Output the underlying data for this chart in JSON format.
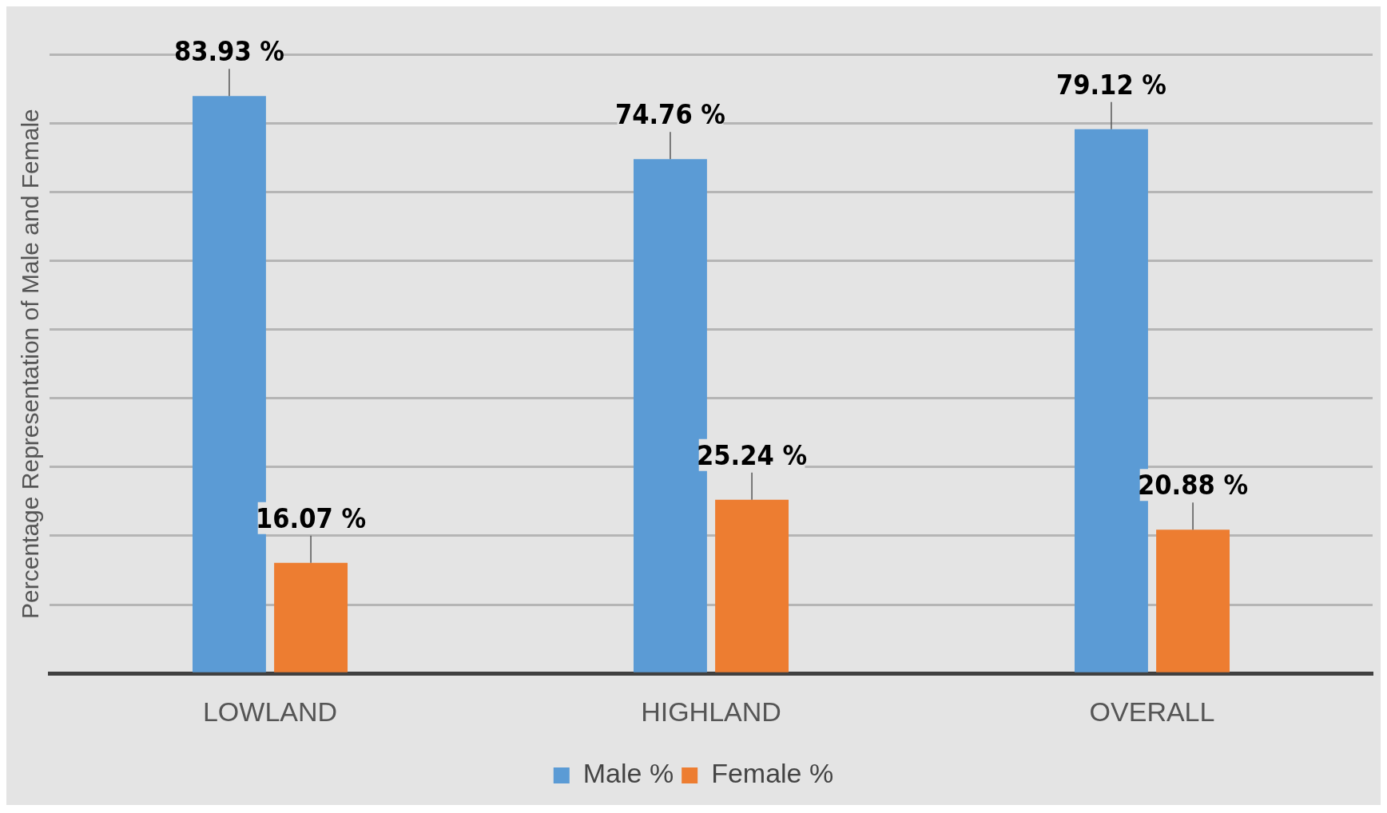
{
  "chart_data": {
    "type": "bar",
    "ylabel": "Percentage Representation of Male and Female",
    "categories": [
      "LOWLAND",
      "HIGHLAND",
      "OVERALL"
    ],
    "series": [
      {
        "name": "Male %",
        "color": "#5b9bd5",
        "values": [
          83.93,
          74.76,
          79.12
        ],
        "value_labels": [
          "83.93 %",
          "74.76 %",
          "79.12 %"
        ]
      },
      {
        "name": "Female %",
        "color": "#ed7d31",
        "values": [
          16.07,
          25.24,
          20.88
        ],
        "value_labels": [
          "16.07 %",
          "25.24 %",
          "20.88 %"
        ]
      }
    ],
    "ylim": [
      0,
      90
    ],
    "yticks": [
      {
        "value": 0,
        "label": null
      },
      {
        "value": 10,
        "label": null
      },
      {
        "value": 20,
        "label": null
      },
      {
        "value": 30,
        "label": null
      },
      {
        "value": 40,
        "label": null
      },
      {
        "value": 50,
        "label": null
      },
      {
        "value": 60,
        "label": null
      },
      {
        "value": 70,
        "label": null
      },
      {
        "value": 80,
        "label": null
      },
      {
        "value": 90,
        "label": null
      }
    ],
    "grid": "y",
    "tick_labels": "x",
    "legend": "bottom"
  }
}
